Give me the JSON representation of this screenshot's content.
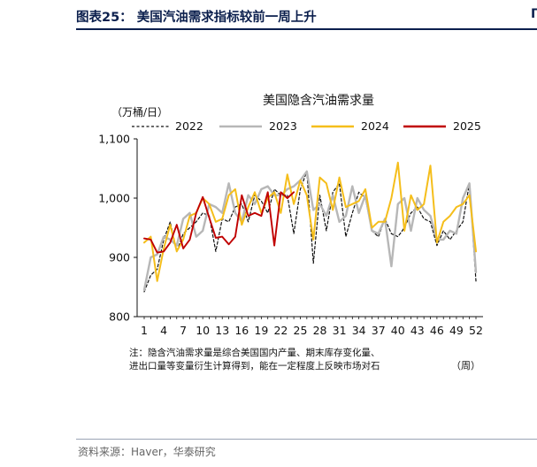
{
  "header": {
    "figure_title": "图表25：  美国汽油需求指标较前一周上升",
    "right_edge_glyph": "Γ"
  },
  "footer": {
    "source": "资料来源：Haver，华泰研究"
  },
  "colors": {
    "s2022": "#111111",
    "s2023": "#b7b7b7",
    "s2024": "#f5be1b",
    "s2025": "#c00000",
    "title": "#0b1f4d"
  },
  "chart_data": {
    "type": "line",
    "title": "美国隐含汽油需求量",
    "unit_label": "（万桶/日）",
    "xlabel": "（周）",
    "note_line1": "注：隐含汽油需求量是综合美国国内产量、期末库存变化量、",
    "note_line2": "进出口量等变量衍生计算得到，能在一定程度上反映市场对石",
    "xlim": [
      1,
      52
    ],
    "ylim": [
      800,
      1100
    ],
    "x_ticks": [
      1,
      4,
      7,
      10,
      13,
      16,
      19,
      22,
      25,
      28,
      31,
      34,
      37,
      40,
      43,
      46,
      49,
      52
    ],
    "y_ticks": [
      800,
      900,
      1000,
      1100
    ],
    "y_tick_labels": [
      "800",
      "900",
      "1,000",
      "1,100"
    ],
    "legend_position": "top",
    "series": [
      {
        "name": "2022",
        "style": "dashed",
        "values": [
          842,
          870,
          880,
          930,
          960,
          910,
          940,
          950,
          960,
          975,
          970,
          910,
          965,
          960,
          985,
          990,
          960,
          1005,
          995,
          975,
          1015,
          1005,
          1005,
          940,
          1015,
          1045,
          890,
          1005,
          945,
          1010,
          1025,
          935,
          975,
          1010,
          1000,
          945,
          935,
          965,
          940,
          935,
          950,
          975,
          985,
          965,
          960,
          920,
          945,
          930,
          945,
          960,
          1025,
          860
        ]
      },
      {
        "name": "2023",
        "style": "solid",
        "values": [
          845,
          900,
          905,
          935,
          930,
          920,
          965,
          975,
          935,
          945,
          990,
          985,
          975,
          1025,
          975,
          960,
          1005,
          990,
          1015,
          1020,
          1005,
          1005,
          1015,
          1020,
          1030,
          1045,
          980,
          990,
          970,
          1005,
          960,
          970,
          1020,
          975,
          1005,
          945,
          940,
          965,
          885,
          990,
          1000,
          945,
          1000,
          980,
          970,
          930,
          930,
          945,
          940,
          1000,
          1025,
          875
        ]
      },
      {
        "name": "2024",
        "style": "solid",
        "values": [
          925,
          935,
          860,
          915,
          955,
          910,
          930,
          970,
          975,
          1000,
          990,
          960,
          965,
          1005,
          1015,
          955,
          985,
          1010,
          975,
          1000,
          1010,
          975,
          1040,
          990,
          1030,
          1005,
          930,
          1035,
          1025,
          980,
          1035,
          985,
          990,
          995,
          1015,
          950,
          960,
          960,
          1000,
          1060,
          945,
          1005,
          980,
          990,
          1055,
          925,
          960,
          970,
          985,
          990,
          1005,
          910
        ]
      },
      {
        "name": "2025",
        "style": "solid",
        "values": [
          932,
          930,
          908,
          910,
          925,
          955,
          915,
          930,
          975,
          1002,
          967,
          933,
          935,
          922,
          935,
          1005,
          970,
          975,
          970,
          1010,
          920,
          1010,
          1000,
          1010
        ]
      }
    ]
  }
}
